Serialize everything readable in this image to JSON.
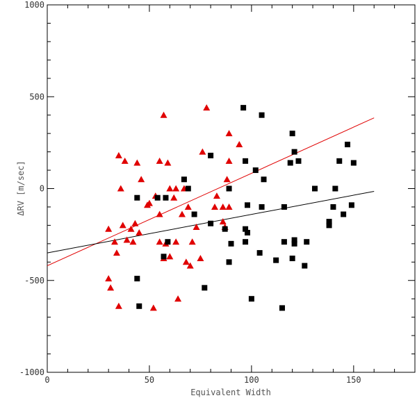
{
  "chart_data": {
    "type": "scatter",
    "title": "",
    "xlabel": "Equivalent Width",
    "ylabel": "ΔRV [m/sec]",
    "xlim": [
      0,
      180
    ],
    "ylim": [
      -1000,
      1000
    ],
    "x_ticks": [
      0,
      50,
      100,
      150
    ],
    "y_ticks": [
      -1000,
      -500,
      0,
      500,
      1000
    ],
    "grid": false,
    "legend": "none",
    "series": [
      {
        "marker": "triangle",
        "color": "#e00000",
        "points": [
          [
            30,
            -220
          ],
          [
            30,
            -490
          ],
          [
            31,
            -540
          ],
          [
            33,
            -290
          ],
          [
            34,
            -350
          ],
          [
            35,
            -640
          ],
          [
            35,
            180
          ],
          [
            36,
            0
          ],
          [
            37,
            -200
          ],
          [
            38,
            150
          ],
          [
            39,
            -280
          ],
          [
            41,
            -220
          ],
          [
            42,
            -290
          ],
          [
            43,
            -190
          ],
          [
            44,
            140
          ],
          [
            45,
            -240
          ],
          [
            46,
            50
          ],
          [
            49,
            -90
          ],
          [
            50,
            -80
          ],
          [
            52,
            -650
          ],
          [
            53,
            -40
          ],
          [
            55,
            -290
          ],
          [
            55,
            -140
          ],
          [
            55,
            150
          ],
          [
            57,
            -380
          ],
          [
            57,
            400
          ],
          [
            58,
            -300
          ],
          [
            59,
            140
          ],
          [
            60,
            0
          ],
          [
            60,
            -370
          ],
          [
            62,
            -50
          ],
          [
            63,
            0
          ],
          [
            63,
            -290
          ],
          [
            64,
            -600
          ],
          [
            66,
            -140
          ],
          [
            67,
            0
          ],
          [
            68,
            -400
          ],
          [
            69,
            -100
          ],
          [
            70,
            -420
          ],
          [
            71,
            -290
          ],
          [
            73,
            -210
          ],
          [
            75,
            -380
          ],
          [
            76,
            200
          ],
          [
            78,
            440
          ],
          [
            82,
            -100
          ],
          [
            83,
            -40
          ],
          [
            86,
            -100
          ],
          [
            86,
            -180
          ],
          [
            87,
            -210
          ],
          [
            88,
            50
          ],
          [
            89,
            -100
          ],
          [
            89,
            150
          ],
          [
            89,
            300
          ],
          [
            94,
            240
          ]
        ]
      },
      {
        "marker": "square",
        "color": "#000000",
        "points": [
          [
            44,
            -50
          ],
          [
            44,
            -490
          ],
          [
            45,
            -640
          ],
          [
            54,
            -50
          ],
          [
            57,
            -370
          ],
          [
            58,
            -50
          ],
          [
            59,
            -290
          ],
          [
            67,
            50
          ],
          [
            69,
            0
          ],
          [
            72,
            -140
          ],
          [
            77,
            -540
          ],
          [
            80,
            -190
          ],
          [
            80,
            180
          ],
          [
            87,
            -220
          ],
          [
            89,
            0
          ],
          [
            89,
            -400
          ],
          [
            90,
            -300
          ],
          [
            96,
            440
          ],
          [
            97,
            -290
          ],
          [
            97,
            150
          ],
          [
            97,
            -220
          ],
          [
            98,
            -90
          ],
          [
            98,
            -240
          ],
          [
            100,
            -600
          ],
          [
            102,
            100
          ],
          [
            104,
            -350
          ],
          [
            105,
            -100
          ],
          [
            105,
            400
          ],
          [
            106,
            50
          ],
          [
            112,
            -390
          ],
          [
            115,
            -650
          ],
          [
            116,
            -100
          ],
          [
            116,
            -290
          ],
          [
            119,
            140
          ],
          [
            120,
            -380
          ],
          [
            120,
            300
          ],
          [
            121,
            -300
          ],
          [
            121,
            200
          ],
          [
            121,
            -280
          ],
          [
            123,
            150
          ],
          [
            126,
            -420
          ],
          [
            127,
            -290
          ],
          [
            131,
            0
          ],
          [
            138,
            -180
          ],
          [
            138,
            -200
          ],
          [
            140,
            -100
          ],
          [
            141,
            0
          ],
          [
            143,
            150
          ],
          [
            145,
            -140
          ],
          [
            147,
            240
          ],
          [
            149,
            -90
          ],
          [
            150,
            140
          ]
        ]
      }
    ],
    "fit_lines": [
      {
        "color": "#e00000",
        "x": [
          0,
          160
        ],
        "y": [
          -420,
          385
        ]
      },
      {
        "color": "#000000",
        "x": [
          0,
          160
        ],
        "y": [
          -350,
          -15
        ]
      }
    ]
  }
}
